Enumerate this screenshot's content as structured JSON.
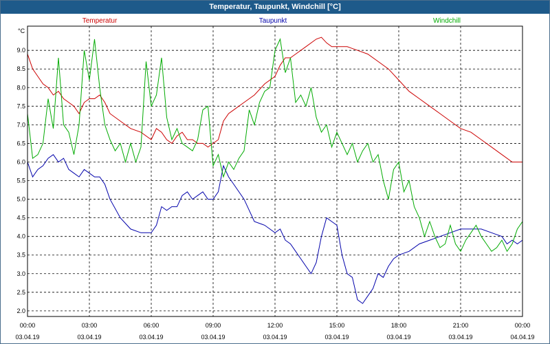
{
  "title": "Temperatur, Taupunkt, Windchill [°C]",
  "chart_data": {
    "type": "line",
    "title": "Temperatur, Taupunkt, Windchill [°C]",
    "ylabel": "°C",
    "ylim": [
      1.85,
      9.65
    ],
    "y_ticks": [
      "2.0",
      "2.5",
      "3.0",
      "3.5",
      "4.0",
      "4.5",
      "5.0",
      "5.5",
      "6.0",
      "6.5",
      "7.0",
      "7.5",
      "8.0",
      "8.5",
      "9.0"
    ],
    "x_range_hours": [
      0,
      24
    ],
    "x_ticks": [
      {
        "time": "00:00",
        "date": "03.04.19",
        "h": 0
      },
      {
        "time": "03:00",
        "date": "03.04.19",
        "h": 3
      },
      {
        "time": "06:00",
        "date": "03.04.19",
        "h": 6
      },
      {
        "time": "09:00",
        "date": "03.04.19",
        "h": 9
      },
      {
        "time": "12:00",
        "date": "03.04.19",
        "h": 12
      },
      {
        "time": "15:00",
        "date": "03.04.19",
        "h": 15
      },
      {
        "time": "18:00",
        "date": "03.04.19",
        "h": 18
      },
      {
        "time": "21:00",
        "date": "03.04.19",
        "h": 21
      },
      {
        "time": "00:00",
        "date": "04.04.19",
        "h": 24
      }
    ],
    "grid": true,
    "legend_placement": "top",
    "series": [
      {
        "name": "Temperatur",
        "color": "#cc0000",
        "x": [
          0,
          0.25,
          0.5,
          0.75,
          1,
          1.25,
          1.5,
          1.75,
          2,
          2.25,
          2.5,
          2.75,
          3,
          3.25,
          3.5,
          3.75,
          4,
          4.5,
          5,
          5.5,
          6,
          6.25,
          6.5,
          6.75,
          7,
          7.25,
          7.5,
          7.75,
          8,
          8.25,
          8.5,
          8.75,
          9,
          9.25,
          9.5,
          9.75,
          10,
          10.5,
          11,
          11.5,
          12,
          12.25,
          12.5,
          12.75,
          13,
          13.5,
          14,
          14.25,
          14.5,
          14.75,
          15,
          15.5,
          16,
          16.5,
          17,
          17.5,
          18,
          18.5,
          19,
          19.5,
          20,
          20.5,
          21,
          21.5,
          22,
          22.5,
          23,
          23.5,
          24
        ],
        "y": [
          8.9,
          8.5,
          8.3,
          8.1,
          8.0,
          7.8,
          7.9,
          7.7,
          7.6,
          7.5,
          7.3,
          7.6,
          7.7,
          7.7,
          7.8,
          7.6,
          7.3,
          7.1,
          6.9,
          6.8,
          6.6,
          6.9,
          6.8,
          6.6,
          6.5,
          6.7,
          6.8,
          6.6,
          6.6,
          6.5,
          6.5,
          6.4,
          6.5,
          6.6,
          7.1,
          7.3,
          7.4,
          7.6,
          7.8,
          8.1,
          8.3,
          8.6,
          8.8,
          8.8,
          8.9,
          9.1,
          9.3,
          9.35,
          9.2,
          9.1,
          9.1,
          9.1,
          9.0,
          8.9,
          8.7,
          8.5,
          8.2,
          7.9,
          7.7,
          7.5,
          7.3,
          7.1,
          6.9,
          6.8,
          6.6,
          6.4,
          6.2,
          6.0,
          6.0
        ]
      },
      {
        "name": "Taupunkt",
        "color": "#0000aa",
        "x": [
          0,
          0.25,
          0.5,
          0.75,
          1,
          1.25,
          1.5,
          1.75,
          2,
          2.25,
          2.5,
          2.75,
          3,
          3.25,
          3.5,
          3.75,
          4,
          4.5,
          5,
          5.5,
          6,
          6.25,
          6.5,
          6.75,
          7,
          7.25,
          7.5,
          7.75,
          8,
          8.25,
          8.5,
          8.75,
          9,
          9.25,
          9.5,
          9.75,
          10,
          10.5,
          11,
          11.5,
          12,
          12.25,
          12.5,
          12.75,
          13,
          13.25,
          13.5,
          13.75,
          14,
          14.25,
          14.5,
          14.75,
          15,
          15.25,
          15.5,
          15.75,
          16,
          16.25,
          16.5,
          16.75,
          17,
          17.25,
          17.5,
          17.75,
          18,
          18.5,
          19,
          19.5,
          20,
          20.5,
          21,
          21.5,
          22,
          22.5,
          23,
          23.25,
          23.5,
          23.75,
          24
        ],
        "y": [
          6.0,
          5.6,
          5.8,
          5.9,
          6.1,
          6.2,
          6.0,
          6.1,
          5.8,
          5.7,
          5.6,
          5.8,
          5.7,
          5.6,
          5.6,
          5.4,
          5.0,
          4.5,
          4.2,
          4.1,
          4.1,
          4.3,
          4.8,
          4.7,
          4.8,
          4.8,
          5.1,
          5.2,
          5.0,
          5.1,
          5.2,
          5.0,
          5.0,
          5.2,
          5.9,
          5.6,
          5.4,
          5.0,
          4.4,
          4.3,
          4.1,
          4.2,
          3.9,
          3.8,
          3.6,
          3.4,
          3.2,
          3.0,
          3.3,
          4.0,
          4.5,
          4.4,
          4.3,
          3.5,
          3.0,
          2.9,
          2.3,
          2.2,
          2.4,
          2.6,
          3.0,
          2.9,
          3.2,
          3.4,
          3.5,
          3.6,
          3.8,
          3.9,
          4.0,
          4.1,
          4.2,
          4.2,
          4.2,
          4.1,
          4.0,
          3.8,
          3.9,
          3.8,
          3.9
        ]
      },
      {
        "name": "Windchill",
        "color": "#00aa00",
        "x": [
          0,
          0.25,
          0.5,
          0.75,
          1,
          1.25,
          1.5,
          1.75,
          2,
          2.25,
          2.5,
          2.75,
          3,
          3.25,
          3.5,
          3.75,
          4,
          4.25,
          4.5,
          4.75,
          5,
          5.25,
          5.5,
          5.75,
          6,
          6.25,
          6.5,
          6.75,
          7,
          7.25,
          7.5,
          7.75,
          8,
          8.25,
          8.5,
          8.75,
          9,
          9.25,
          9.5,
          9.75,
          10,
          10.25,
          10.5,
          10.75,
          11,
          11.25,
          11.5,
          11.75,
          12,
          12.25,
          12.5,
          12.75,
          13,
          13.25,
          13.5,
          13.75,
          14,
          14.25,
          14.5,
          14.75,
          15,
          15.25,
          15.5,
          15.75,
          16,
          16.25,
          16.5,
          16.75,
          17,
          17.25,
          17.5,
          17.75,
          18,
          18.25,
          18.5,
          18.75,
          19,
          19.25,
          19.5,
          19.75,
          20,
          20.25,
          20.5,
          20.75,
          21,
          21.25,
          21.5,
          21.75,
          22,
          22.25,
          22.5,
          22.75,
          23,
          23.25,
          23.5,
          23.75,
          24
        ],
        "y": [
          7.3,
          6.1,
          6.2,
          6.5,
          7.7,
          6.9,
          8.8,
          7.0,
          6.8,
          6.2,
          7.0,
          9.0,
          8.2,
          9.3,
          8.0,
          7.0,
          6.6,
          6.3,
          6.5,
          6.0,
          6.5,
          6.0,
          6.4,
          8.7,
          7.5,
          7.8,
          8.8,
          7.2,
          6.6,
          6.9,
          6.5,
          6.4,
          6.3,
          6.6,
          7.4,
          7.5,
          5.9,
          6.2,
          5.6,
          6.0,
          5.8,
          6.1,
          6.3,
          7.4,
          7.0,
          7.6,
          7.9,
          8.0,
          9.0,
          9.3,
          8.4,
          8.8,
          7.6,
          7.8,
          7.5,
          8.0,
          7.2,
          6.8,
          7.0,
          6.4,
          6.8,
          6.5,
          6.2,
          6.5,
          6.0,
          6.3,
          6.5,
          6.0,
          6.2,
          5.5,
          5.0,
          5.8,
          6.0,
          5.2,
          5.5,
          4.8,
          4.5,
          4.0,
          4.4,
          4.0,
          3.7,
          3.8,
          4.3,
          3.8,
          3.6,
          3.9,
          4.1,
          4.3,
          4.0,
          3.8,
          3.6,
          3.7,
          3.9,
          3.6,
          3.8,
          4.2,
          4.4
        ]
      }
    ]
  }
}
